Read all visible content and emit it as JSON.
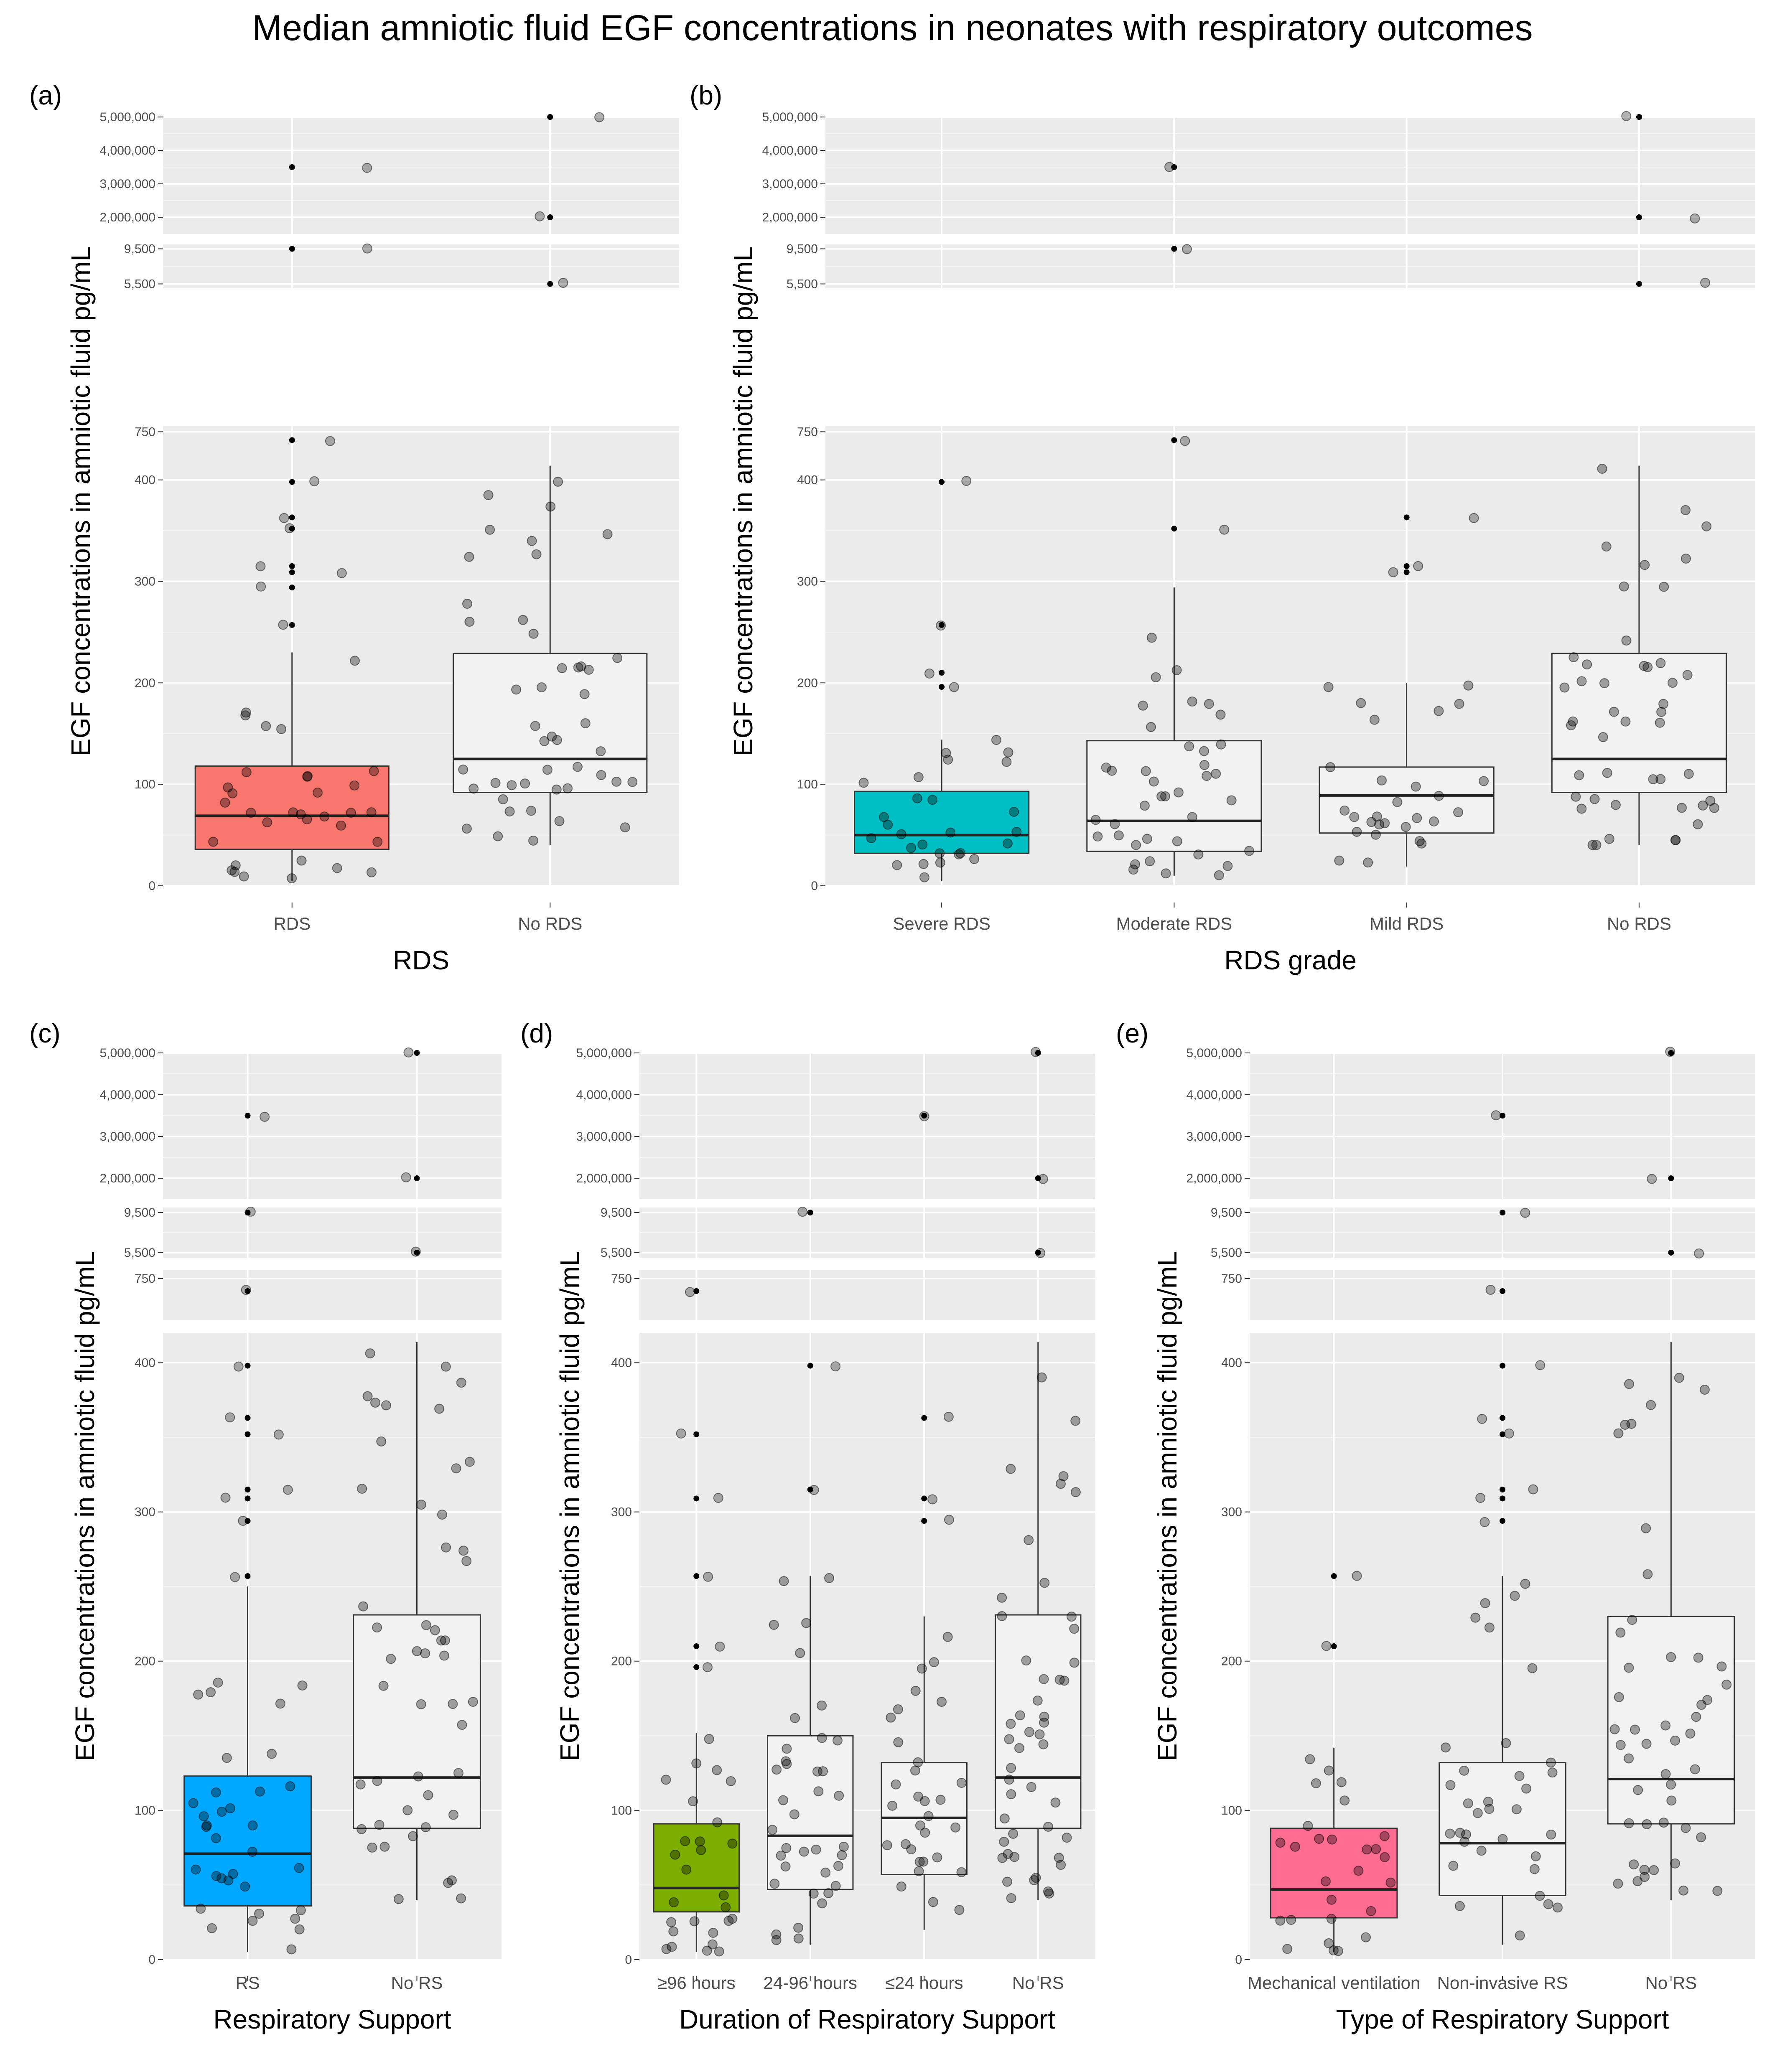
{
  "title": "Median amniotic fluid EGF concentrations in neonates with respiratory outcomes",
  "chart_data": [
    {
      "panel": "(a)",
      "type": "box",
      "xlabel": "RDS",
      "ylabel": "EGF concentrations in amniotic fluid pg/mL",
      "y_segments": [
        {
          "range": [
            0,
            420
          ],
          "ticks": [
            0,
            100,
            200,
            300,
            400
          ]
        },
        {
          "range": [
            700,
            760
          ],
          "ticks": [
            750
          ]
        },
        {
          "range": [
            5000,
            10000
          ],
          "ticks": [
            5500,
            9500
          ]
        },
        {
          "range": [
            1500000,
            5000000
          ],
          "ticks": [
            2000000,
            3000000,
            4000000,
            5000000
          ],
          "tick_labels": [
            "2,000,000",
            "3,000,000",
            "4,000,000",
            "5,000,000"
          ]
        }
      ],
      "categories": [
        "RDS",
        "No RDS"
      ],
      "boxes": [
        {
          "category": "RDS",
          "fill": "#F8766D",
          "min": 5,
          "q1": 36,
          "median": 69,
          "q3": 118,
          "max": 230
        },
        {
          "category": "No RDS",
          "fill": "#F2F2F2",
          "min": 40,
          "q1": 92,
          "median": 125,
          "q3": 229,
          "max": 414
        }
      ],
      "outliers": [
        {
          "category": "RDS",
          "values": [
            257,
            294,
            309,
            315,
            352,
            363,
            398,
            735,
            9500,
            3500000
          ]
        },
        {
          "category": "No RDS",
          "values": [
            5500,
            2000000,
            5000000
          ]
        }
      ]
    },
    {
      "panel": "(b)",
      "type": "box",
      "xlabel": "RDS grade",
      "ylabel": "EGF concentrations in amniotic fluid pg/mL",
      "y_segments": [
        {
          "range": [
            0,
            420
          ],
          "ticks": [
            0,
            100,
            200,
            300,
            400
          ]
        },
        {
          "range": [
            700,
            760
          ],
          "ticks": [
            750
          ]
        },
        {
          "range": [
            5000,
            10000
          ],
          "ticks": [
            5500,
            9500
          ]
        },
        {
          "range": [
            1500000,
            5000000
          ],
          "ticks": [
            2000000,
            3000000,
            4000000,
            5000000
          ],
          "tick_labels": [
            "2,000,000",
            "3,000,000",
            "4,000,000",
            "5,000,000"
          ]
        }
      ],
      "categories": [
        "Severe RDS",
        "Moderate RDS",
        "Mild RDS",
        "No RDS"
      ],
      "boxes": [
        {
          "category": "Severe RDS",
          "fill": "#00BFC4",
          "min": 5,
          "q1": 32,
          "median": 50,
          "q3": 93,
          "max": 144
        },
        {
          "category": "Moderate RDS",
          "fill": "#F2F2F2",
          "min": 10,
          "q1": 34,
          "median": 64,
          "q3": 143,
          "max": 294
        },
        {
          "category": "Mild RDS",
          "fill": "#F2F2F2",
          "min": 19,
          "q1": 52,
          "median": 89,
          "q3": 117,
          "max": 200
        },
        {
          "category": "No RDS",
          "fill": "#F2F2F2",
          "min": 40,
          "q1": 92,
          "median": 125,
          "q3": 229,
          "max": 414
        }
      ],
      "outliers": [
        {
          "category": "Severe RDS",
          "values": [
            196,
            210,
            257,
            398
          ]
        },
        {
          "category": "Moderate RDS",
          "values": [
            352,
            735,
            9500,
            3500000
          ]
        },
        {
          "category": "Mild RDS",
          "values": [
            309,
            315,
            363
          ]
        },
        {
          "category": "No RDS",
          "values": [
            5500,
            2000000,
            5000000
          ]
        }
      ]
    },
    {
      "panel": "(c)",
      "type": "box",
      "xlabel": "Respiratory Support",
      "ylabel": "EGF concentrations in amniotic fluid pg/mL",
      "y_segments": [
        {
          "range": [
            0,
            420
          ],
          "ticks": [
            0,
            100,
            200,
            300,
            400
          ]
        },
        {
          "range": [
            700,
            760
          ],
          "ticks": [
            750
          ]
        },
        {
          "range": [
            5000,
            10000
          ],
          "ticks": [
            5500,
            9500
          ]
        },
        {
          "range": [
            1500000,
            5000000
          ],
          "ticks": [
            2000000,
            3000000,
            4000000,
            5000000
          ],
          "tick_labels": [
            "2,000,000",
            "3,000,000",
            "4,000,000",
            "5,000,000"
          ]
        }
      ],
      "categories": [
        "RS",
        "No RS"
      ],
      "boxes": [
        {
          "category": "RS",
          "fill": "#00A9FF",
          "min": 5,
          "q1": 36,
          "median": 71,
          "q3": 123,
          "max": 250
        },
        {
          "category": "No RS",
          "fill": "#F2F2F2",
          "min": 40,
          "q1": 88,
          "median": 122,
          "q3": 231,
          "max": 414
        }
      ],
      "outliers": [
        {
          "category": "RS",
          "values": [
            257,
            294,
            309,
            315,
            352,
            363,
            398,
            735,
            9500,
            3500000
          ]
        },
        {
          "category": "No RS",
          "values": [
            5500,
            2000000,
            5000000
          ]
        }
      ]
    },
    {
      "panel": "(d)",
      "type": "box",
      "xlabel": "Duration of Respiratory Support",
      "ylabel": "EGF concentrations in amniotic fluid pg/mL",
      "y_segments": [
        {
          "range": [
            0,
            420
          ],
          "ticks": [
            0,
            100,
            200,
            300,
            400
          ]
        },
        {
          "range": [
            700,
            760
          ],
          "ticks": [
            750
          ]
        },
        {
          "range": [
            5000,
            10000
          ],
          "ticks": [
            5500,
            9500
          ]
        },
        {
          "range": [
            1500000,
            5000000
          ],
          "ticks": [
            2000000,
            3000000,
            4000000,
            5000000
          ],
          "tick_labels": [
            "2,000,000",
            "3,000,000",
            "4,000,000",
            "5,000,000"
          ]
        }
      ],
      "categories": [
        "≥96 hours",
        "24-96 hours",
        "≤24 hours",
        "No RS"
      ],
      "boxes": [
        {
          "category": "≥96 hours",
          "fill": "#7CAE00",
          "min": 5,
          "q1": 32,
          "median": 48,
          "q3": 91,
          "max": 152
        },
        {
          "category": "24-96 hours",
          "fill": "#F2F2F2",
          "min": 10,
          "q1": 47,
          "median": 83,
          "q3": 150,
          "max": 257
        },
        {
          "category": "≤24 hours",
          "fill": "#F2F2F2",
          "min": 20,
          "q1": 57,
          "median": 95,
          "q3": 132,
          "max": 230
        },
        {
          "category": "No RS",
          "fill": "#F2F2F2",
          "min": 40,
          "q1": 88,
          "median": 122,
          "q3": 231,
          "max": 414
        }
      ],
      "outliers": [
        {
          "category": "≥96 hours",
          "values": [
            196,
            210,
            257,
            309,
            352,
            735
          ]
        },
        {
          "category": "24-96 hours",
          "values": [
            315,
            398,
            9500
          ]
        },
        {
          "category": "≤24 hours",
          "values": [
            294,
            309,
            363,
            3500000
          ]
        },
        {
          "category": "No RS",
          "values": [
            5500,
            2000000,
            5000000
          ]
        }
      ]
    },
    {
      "panel": "(e)",
      "type": "box",
      "xlabel": "Type of Respiratory Support",
      "ylabel": "EGF concentrations in amniotic fluid pg/mL",
      "y_segments": [
        {
          "range": [
            0,
            420
          ],
          "ticks": [
            0,
            100,
            200,
            300,
            400
          ]
        },
        {
          "range": [
            700,
            760
          ],
          "ticks": [
            750
          ]
        },
        {
          "range": [
            5000,
            10000
          ],
          "ticks": [
            5500,
            9500
          ]
        },
        {
          "range": [
            1500000,
            5000000
          ],
          "ticks": [
            2000000,
            3000000,
            4000000,
            5000000
          ],
          "tick_labels": [
            "2,000,000",
            "3,000,000",
            "4,000,000",
            "5,000,000"
          ]
        }
      ],
      "categories": [
        "Mechanical ventilation",
        "Non-invasive RS",
        "No RS"
      ],
      "boxes": [
        {
          "category": "Mechanical ventilation",
          "fill": "#FF6C91",
          "min": 5,
          "q1": 28,
          "median": 47,
          "q3": 88,
          "max": 142
        },
        {
          "category": "Non-invasive RS",
          "fill": "#F2F2F2",
          "min": 10,
          "q1": 43,
          "median": 78,
          "q3": 132,
          "max": 257
        },
        {
          "category": "No RS",
          "fill": "#F2F2F2",
          "min": 40,
          "q1": 91,
          "median": 121,
          "q3": 230,
          "max": 414
        }
      ],
      "outliers": [
        {
          "category": "Mechanical ventilation",
          "values": [
            210,
            257
          ]
        },
        {
          "category": "Non-invasive RS",
          "values": [
            294,
            309,
            315,
            352,
            363,
            398,
            735,
            9500,
            3500000
          ]
        },
        {
          "category": "No RS",
          "values": [
            5500,
            2000000,
            5000000
          ]
        }
      ]
    }
  ]
}
